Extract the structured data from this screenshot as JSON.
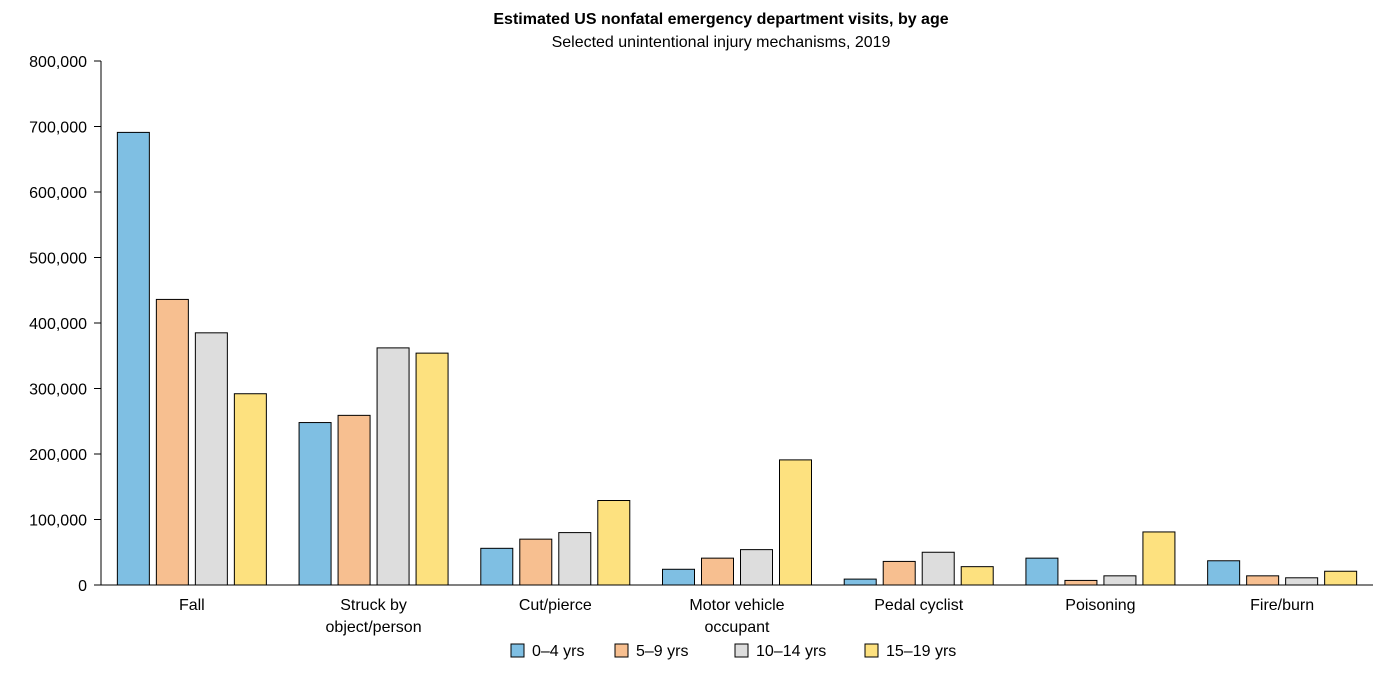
{
  "chart_data": {
    "type": "bar",
    "title": "Estimated US nonfatal emergency department visits, by age",
    "subtitle": "Selected unintentional injury mechanisms, 2019",
    "categories": [
      [
        "Fall"
      ],
      [
        "Struck by",
        "object/person"
      ],
      [
        "Cut/pierce"
      ],
      [
        "Motor vehicle",
        "occupant"
      ],
      [
        "Pedal cyclist"
      ],
      [
        "Poisoning"
      ],
      [
        "Fire/burn"
      ]
    ],
    "series": [
      {
        "name": "0–4 yrs",
        "color": "#7fbfe3",
        "values": [
          691000,
          248000,
          56000,
          24000,
          9000,
          41000,
          37000
        ]
      },
      {
        "name": "5–9 yrs",
        "color": "#f7bf90",
        "values": [
          436000,
          259000,
          70000,
          41000,
          36000,
          7000,
          14000
        ]
      },
      {
        "name": "10–14 yrs",
        "color": "#dddddd",
        "values": [
          385000,
          362000,
          80000,
          54000,
          50000,
          14000,
          11000
        ]
      },
      {
        "name": "15–19 yrs",
        "color": "#fde17f",
        "values": [
          292000,
          354000,
          129000,
          191000,
          28000,
          81000,
          21000
        ]
      }
    ],
    "ylim": [
      0,
      800000
    ],
    "yticks": [
      "0",
      "100,000",
      "200,000",
      "300,000",
      "400,000",
      "500,000",
      "600,000",
      "700,000",
      "800,000"
    ],
    "ytick_values": [
      0,
      100000,
      200000,
      300000,
      400000,
      500000,
      600000,
      700000,
      800000
    ],
    "grid": false,
    "legend_position": "bottom-center"
  }
}
